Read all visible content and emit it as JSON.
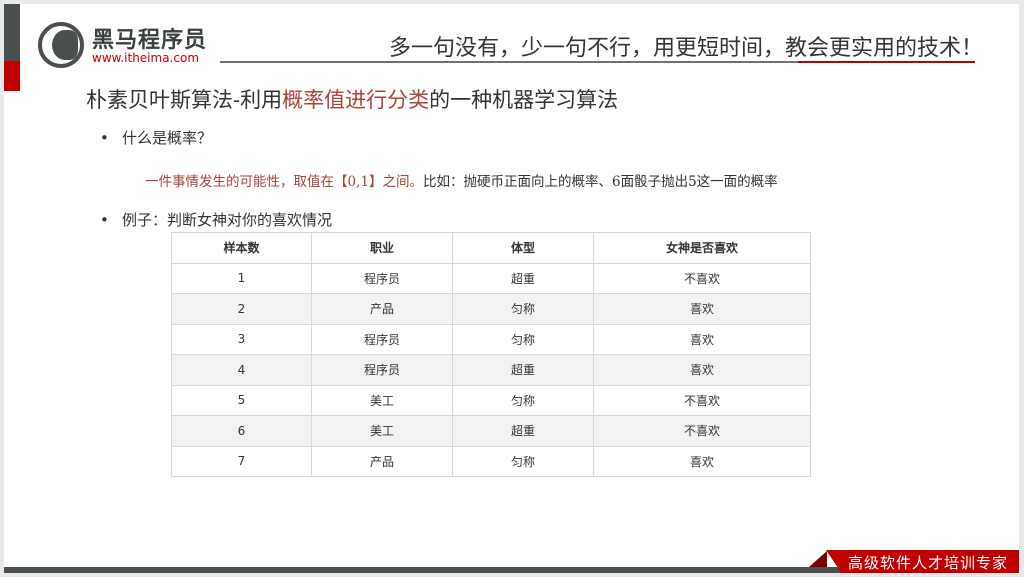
{
  "header": {
    "logo_text": "黑马程序员",
    "logo_url": "www.itheima.com",
    "slogan": "多一句没有，少一句不行，用更短时间，教会更实用的技术！"
  },
  "title": {
    "part1": "朴素贝叶斯算法-利用",
    "highlight": "概率值进行分类",
    "part2": "的一种机器学习算法"
  },
  "bullets": [
    {
      "text": "什么是概率？"
    },
    {
      "text": "例子：判断女神对你的喜欢情况"
    }
  ],
  "definition": {
    "red": "一件事情发生的可能性，取值在【0,1】之间。",
    "rest": "比如：抛硬币正面向上的概率、6面骰子抛出5这一面的概率"
  },
  "table": {
    "headers": [
      "样本数",
      "职业",
      "体型",
      "女神是否喜欢"
    ],
    "rows": [
      [
        "1",
        "程序员",
        "超重",
        "不喜欢"
      ],
      [
        "2",
        "产品",
        "匀称",
        "喜欢"
      ],
      [
        "3",
        "程序员",
        "匀称",
        "喜欢"
      ],
      [
        "4",
        "程序员",
        "超重",
        "喜欢"
      ],
      [
        "5",
        "美工",
        "匀称",
        "不喜欢"
      ],
      [
        "6",
        "美工",
        "超重",
        "不喜欢"
      ],
      [
        "7",
        "产品",
        "匀称",
        "喜欢"
      ]
    ]
  },
  "footer": {
    "tag": "高级软件人才培训专家"
  },
  "colors": {
    "brand_red": "#c00000",
    "dark_gray": "#4a4f50",
    "highlight": "#a8443a"
  }
}
